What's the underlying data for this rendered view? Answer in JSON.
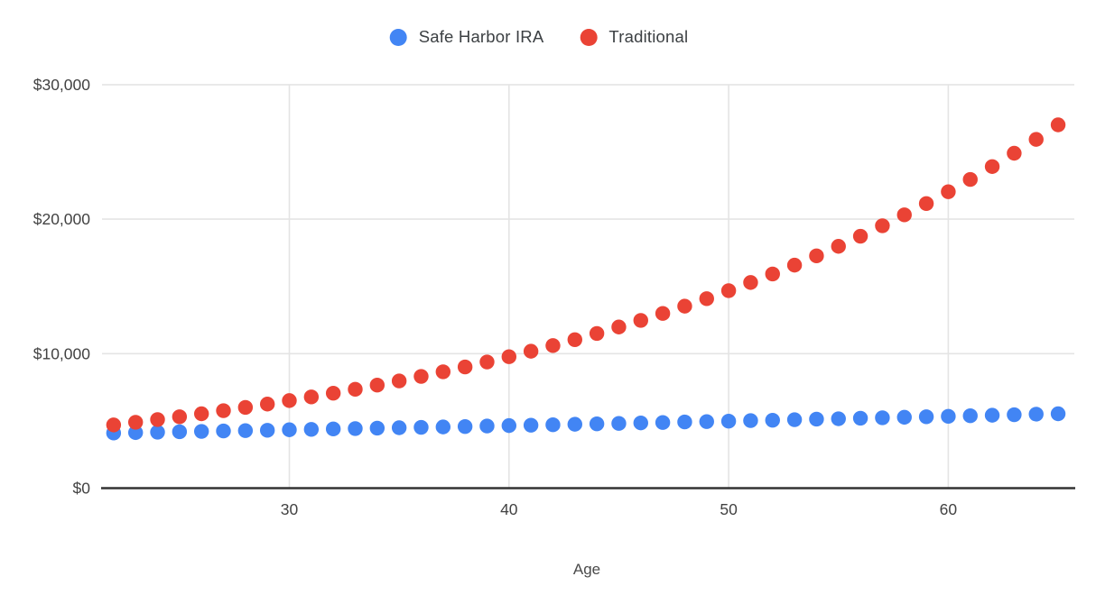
{
  "chart_data": {
    "type": "scatter",
    "title": "",
    "xlabel": "Age",
    "ylabel": "",
    "legend_position": "top",
    "grid": true,
    "xlim": [
      21.5,
      65.8
    ],
    "ylim": [
      0,
      30000
    ],
    "x": [
      22,
      23,
      24,
      25,
      26,
      27,
      28,
      29,
      30,
      31,
      32,
      33,
      34,
      35,
      36,
      37,
      38,
      39,
      40,
      41,
      42,
      43,
      44,
      45,
      46,
      47,
      48,
      49,
      50,
      51,
      52,
      53,
      54,
      55,
      56,
      57,
      58,
      59,
      60,
      61,
      62,
      63,
      64,
      65
    ],
    "series": [
      {
        "name": "Safe Harbor IRA",
        "color": "#4285f4",
        "values": [
          4100,
          4130,
          4160,
          4190,
          4220,
          4250,
          4280,
          4300,
          4340,
          4370,
          4400,
          4430,
          4460,
          4490,
          4520,
          4550,
          4580,
          4620,
          4650,
          4680,
          4710,
          4750,
          4780,
          4810,
          4850,
          4880,
          4920,
          4950,
          4980,
          5020,
          5050,
          5090,
          5130,
          5160,
          5200,
          5230,
          5270,
          5310,
          5340,
          5380,
          5420,
          5460,
          5500,
          5530
        ]
      },
      {
        "name": "Traditional",
        "color": "#ea4335",
        "values": [
          4700,
          4900,
          5100,
          5310,
          5530,
          5760,
          6000,
          6250,
          6510,
          6780,
          7060,
          7350,
          7660,
          7970,
          8310,
          8650,
          9010,
          9380,
          9770,
          10180,
          10600,
          11040,
          11500,
          11980,
          12470,
          12990,
          13530,
          14090,
          14680,
          15290,
          15920,
          16580,
          17270,
          17980,
          18730,
          19510,
          20320,
          21160,
          22040,
          22950,
          23910,
          24900,
          25930,
          27010
        ]
      }
    ],
    "y_axis": {
      "ticks": [
        {
          "value": 0,
          "label": "$0"
        },
        {
          "value": 10000,
          "label": "$10,000"
        },
        {
          "value": 20000,
          "label": "$20,000"
        },
        {
          "value": 30000,
          "label": "$30,000"
        }
      ]
    },
    "x_axis": {
      "ticks": [
        {
          "value": 30,
          "label": "30"
        },
        {
          "value": 40,
          "label": "40"
        },
        {
          "value": 50,
          "label": "50"
        },
        {
          "value": 60,
          "label": "60"
        }
      ]
    }
  },
  "colors": {
    "background": "#ffffff",
    "gridline": "#e4e4e4",
    "axis_line": "#333333",
    "tick_text": "#424242",
    "axis_title_text": "#4a4a4a",
    "legend_text": "#3c4043"
  }
}
